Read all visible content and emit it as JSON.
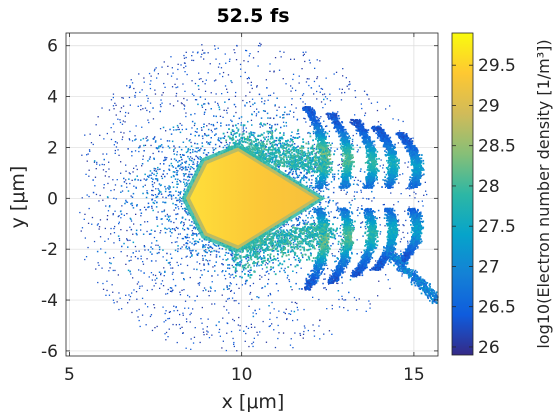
{
  "chart_data": {
    "type": "heatmap",
    "title": "52.5 fs",
    "xlabel": "x [μm]",
    "ylabel": "y [μm]",
    "xlim": [
      4.9,
      15.7
    ],
    "ylim": [
      -6.2,
      6.5
    ],
    "x_ticks": [
      5,
      10,
      15
    ],
    "x_tick_labels": [
      "5",
      "10",
      "15"
    ],
    "y_ticks": [
      -6,
      -4,
      -2,
      0,
      2,
      4,
      6
    ],
    "y_tick_labels": [
      "-6",
      "-4",
      "-2",
      "0",
      "2",
      "4",
      "6"
    ],
    "grid": true,
    "colorbar": {
      "label": "log10(Electron number density [1/m³])",
      "range": [
        25.9,
        29.9
      ],
      "ticks": [
        26,
        26.5,
        27,
        27.5,
        28,
        28.5,
        29,
        29.5
      ],
      "tick_labels": [
        "26",
        "26.5",
        "27",
        "27.5",
        "28",
        "28.5",
        "29",
        "29.5"
      ],
      "colormap": "parula",
      "colormap_stops": [
        "#352a87",
        "#0f5cdd",
        "#1481d6",
        "#06a4ca",
        "#2eb7a4",
        "#87bf77",
        "#d1bb59",
        "#fec832",
        "#f9fb0e"
      ]
    },
    "features": {
      "dense_core": {
        "shape": "pentagon",
        "vertices": [
          [
            9.9,
            1.85
          ],
          [
            12.1,
            0.0
          ],
          [
            9.9,
            -1.85
          ],
          [
            9.0,
            -1.35
          ],
          [
            8.5,
            0.0
          ],
          [
            9.0,
            1.35
          ]
        ],
        "value": 29.3
      },
      "wave_arcs_x": [
        12.4,
        13.1,
        13.8,
        14.4,
        15.1
      ],
      "wave_arc_y_extent": [
        0.4,
        3.6
      ],
      "diffuse_halo_extent": {
        "x": [
          5.3,
          15.7
        ],
        "y": [
          -6.0,
          6.1
        ]
      }
    }
  }
}
